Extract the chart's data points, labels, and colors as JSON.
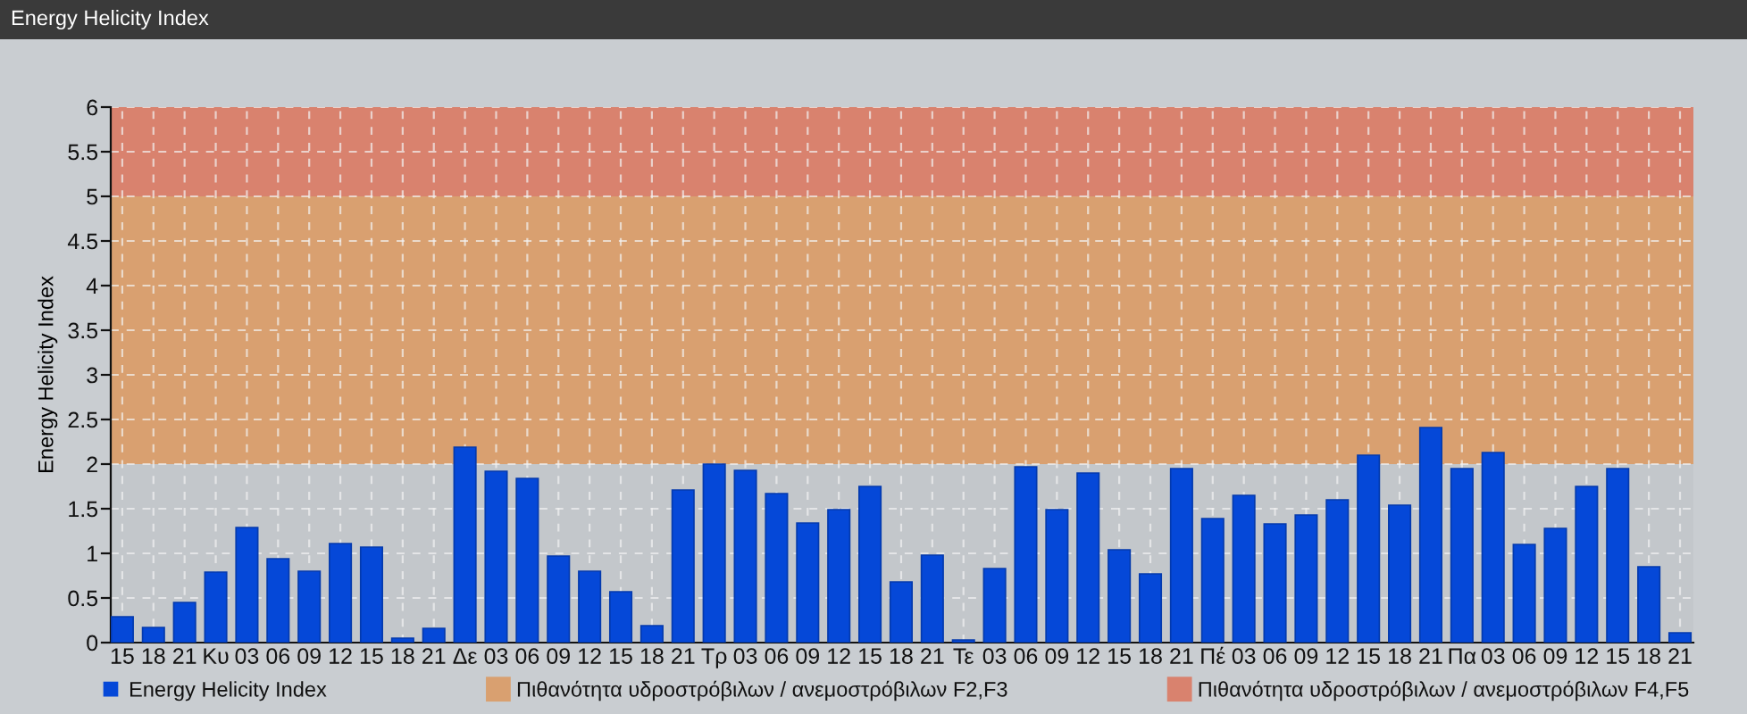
{
  "chart_data": {
    "type": "bar",
    "title": "Energy Helicity Index",
    "ylabel": "Energy Helicity Index",
    "categories": [
      "15",
      "18",
      "21",
      "Κυ",
      "03",
      "06",
      "09",
      "12",
      "15",
      "18",
      "21",
      "Δε",
      "03",
      "06",
      "09",
      "12",
      "15",
      "18",
      "21",
      "Τρ",
      "03",
      "06",
      "09",
      "12",
      "15",
      "18",
      "21",
      "Τε",
      "03",
      "06",
      "09",
      "12",
      "15",
      "18",
      "21",
      "Πέ",
      "03",
      "06",
      "09",
      "12",
      "15",
      "18",
      "21",
      "Πα",
      "03",
      "06",
      "09",
      "12",
      "15",
      "18",
      "21"
    ],
    "series": [
      {
        "name": "Energy Helicity Index",
        "color": "#0548d8",
        "values": [
          0.29,
          0.17,
          0.45,
          0.79,
          1.29,
          0.94,
          0.8,
          1.11,
          1.07,
          0.05,
          0.16,
          2.19,
          1.92,
          1.84,
          0.97,
          0.8,
          0.57,
          0.19,
          1.71,
          2.0,
          1.93,
          1.67,
          1.34,
          1.49,
          1.75,
          0.68,
          0.98,
          0.03,
          0.83,
          1.97,
          1.49,
          1.9,
          1.04,
          0.77,
          1.95,
          1.39,
          1.65,
          1.33,
          1.43,
          1.6,
          2.1,
          1.54,
          2.41,
          1.95,
          2.13,
          1.1,
          1.28,
          1.75,
          1.95,
          0.85,
          0.11
        ]
      }
    ],
    "ylim": [
      0,
      6
    ],
    "yticks": [
      0,
      0.5,
      1,
      1.5,
      2,
      2.5,
      3,
      3.5,
      4,
      4.5,
      5,
      5.5,
      6
    ],
    "bands": [
      {
        "axis": "y",
        "from": 2,
        "to": 5,
        "label": "Πιθανότητα υδροστρόβιλων / ανεμοστρόβιλων F2,F3",
        "color": "#d9a070"
      },
      {
        "axis": "y",
        "from": 5,
        "to": 6,
        "label": "Πιθανότητα υδροστρόβιλων / ανεμοστρόβιλων F4,F5",
        "color": "#d9826e"
      }
    ],
    "grid": true,
    "legend": "bottom"
  }
}
